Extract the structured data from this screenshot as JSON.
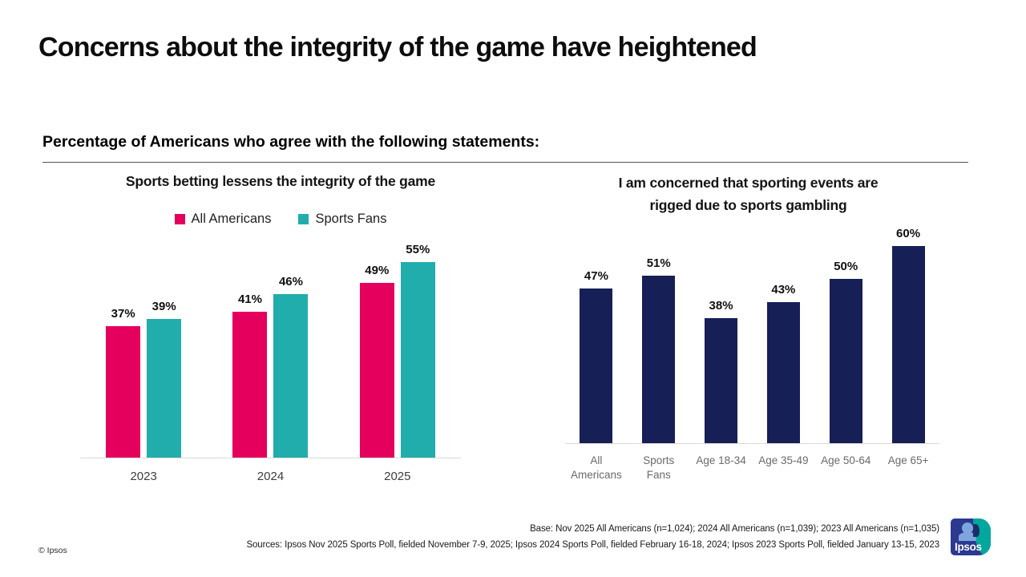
{
  "page": {
    "title": "Concerns about the integrity of the game have heightened",
    "subtitle": "Percentage of Americans who agree with the following statements:",
    "copyright": "© Ipsos",
    "footnote_base": "Base: Nov 2025 All Americans (n=1,024); 2024 All Americans (n=1,039); 2023 All Americans (n=1,035)",
    "footnote_sources": "Sources: Ipsos Nov 2025 Sports Poll, fielded November 7-9, 2025; Ipsos 2024 Sports Poll, fielded February 16-18, 2024; Ipsos 2023 Sports Poll, fielded January 13-15, 2023",
    "logo_text": "Ipsos"
  },
  "colors": {
    "all_americans": "#E4005C",
    "sports_fans": "#21ADAB",
    "navy": "#161F56",
    "axis_line": "#D9D9D9",
    "logo_blue": "#2B3990",
    "logo_teal": "#00A79D"
  },
  "chart_data": [
    {
      "type": "bar",
      "title": "Sports betting lessens the integrity of the game",
      "categories": [
        "2023",
        "2024",
        "2025"
      ],
      "series": [
        {
          "name": "All Americans",
          "color_key": "all_americans",
          "values": [
            37,
            41,
            49
          ]
        },
        {
          "name": "Sports Fans",
          "color_key": "sports_fans",
          "values": [
            39,
            46,
            55
          ]
        }
      ],
      "value_suffix": "%",
      "legend_position": "top",
      "grid": false,
      "ylim": [
        0,
        60
      ]
    },
    {
      "type": "bar",
      "title": "I am concerned that sporting events are rigged due to sports gambling",
      "title_lines": [
        "I am concerned that sporting events are",
        "rigged due to sports gambling"
      ],
      "categories": [
        "All Americans",
        "Sports Fans",
        "Age 18-34",
        "Age 35-49",
        "Age 50-64",
        "Age 65+"
      ],
      "category_lines": [
        [
          "All",
          "Americans"
        ],
        [
          "Sports",
          "Fans"
        ],
        [
          "Age 18-34"
        ],
        [
          "Age 35-49"
        ],
        [
          "Age 50-64"
        ],
        [
          "Age 65+"
        ]
      ],
      "values": [
        47,
        51,
        38,
        43,
        50,
        60
      ],
      "value_suffix": "%",
      "grid": false,
      "ylim": [
        0,
        65
      ]
    }
  ]
}
